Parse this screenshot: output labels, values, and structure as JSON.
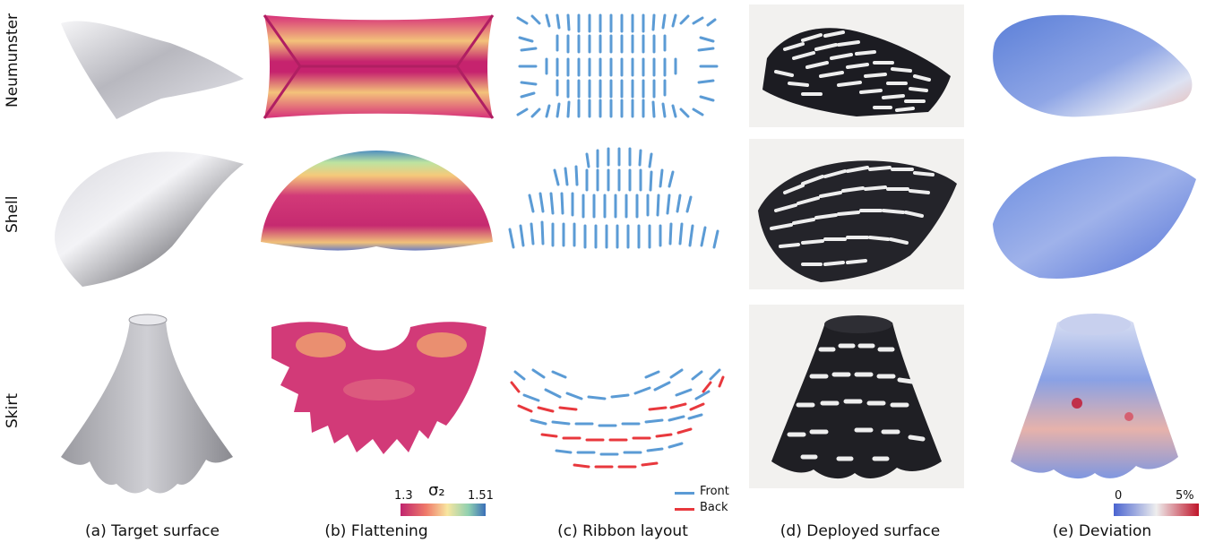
{
  "rows": [
    {
      "label": "Neumunster"
    },
    {
      "label": "Shell"
    },
    {
      "label": "Skirt"
    }
  ],
  "columns": [
    {
      "caption": "(a) Target surface"
    },
    {
      "caption": "(b) Flattening"
    },
    {
      "caption": "(c) Ribbon layout"
    },
    {
      "caption": "(d) Deployed surface"
    },
    {
      "caption": "(e) Deviation"
    }
  ],
  "flattening_colorbar": {
    "symbol": "σ₂",
    "min": "1.3",
    "max": "1.51"
  },
  "ribbon_legend": [
    {
      "label": "Front",
      "color": "#5b9bd5"
    },
    {
      "label": "Back",
      "color": "#e8383d"
    }
  ],
  "deviation_colorbar": {
    "min": "0",
    "max": "5%"
  }
}
